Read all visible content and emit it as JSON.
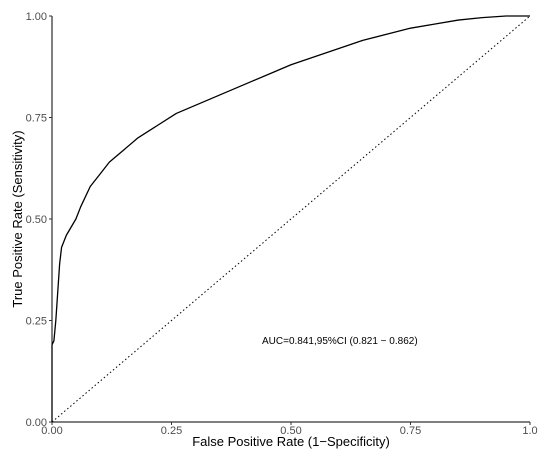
{
  "chart_data": {
    "type": "line",
    "title": "",
    "xlabel": "False Positive Rate (1−Specificity)",
    "ylabel": "True Positive Rate (Sensitivity)",
    "xlim": [
      0,
      1
    ],
    "ylim": [
      0,
      1
    ],
    "grid": false,
    "x_ticks": [
      0,
      0.25,
      0.5,
      0.75,
      1.0
    ],
    "x_tick_labels": [
      "0.00",
      "0.25",
      "0.50",
      "0.75",
      "1.0"
    ],
    "y_ticks": [
      0,
      0.25,
      0.5,
      0.75,
      1.0
    ],
    "y_tick_labels": [
      "0.00",
      "0.25",
      "0.50",
      "0.75",
      "1.00"
    ],
    "annotation": "AUC=0.841,95%CI (0.821 − 0.862)",
    "series": [
      {
        "style": "solid",
        "color": "#000000",
        "points": [
          [
            0.0,
            0.0
          ],
          [
            0.0,
            0.19
          ],
          [
            0.004,
            0.2
          ],
          [
            0.008,
            0.25
          ],
          [
            0.012,
            0.32
          ],
          [
            0.016,
            0.39
          ],
          [
            0.02,
            0.43
          ],
          [
            0.03,
            0.46
          ],
          [
            0.04,
            0.48
          ],
          [
            0.05,
            0.5
          ],
          [
            0.06,
            0.53
          ],
          [
            0.08,
            0.58
          ],
          [
            0.1,
            0.61
          ],
          [
            0.12,
            0.64
          ],
          [
            0.15,
            0.67
          ],
          [
            0.18,
            0.7
          ],
          [
            0.22,
            0.73
          ],
          [
            0.26,
            0.76
          ],
          [
            0.3,
            0.78
          ],
          [
            0.34,
            0.8
          ],
          [
            0.38,
            0.82
          ],
          [
            0.42,
            0.84
          ],
          [
            0.46,
            0.86
          ],
          [
            0.5,
            0.88
          ],
          [
            0.55,
            0.9
          ],
          [
            0.6,
            0.92
          ],
          [
            0.65,
            0.94
          ],
          [
            0.7,
            0.955
          ],
          [
            0.75,
            0.97
          ],
          [
            0.8,
            0.98
          ],
          [
            0.85,
            0.99
          ],
          [
            0.9,
            0.996
          ],
          [
            0.95,
            1.0
          ],
          [
            1.0,
            1.0
          ]
        ]
      },
      {
        "style": "dotted",
        "color": "#000000",
        "points": [
          [
            0,
            0
          ],
          [
            1,
            1
          ]
        ]
      }
    ]
  }
}
